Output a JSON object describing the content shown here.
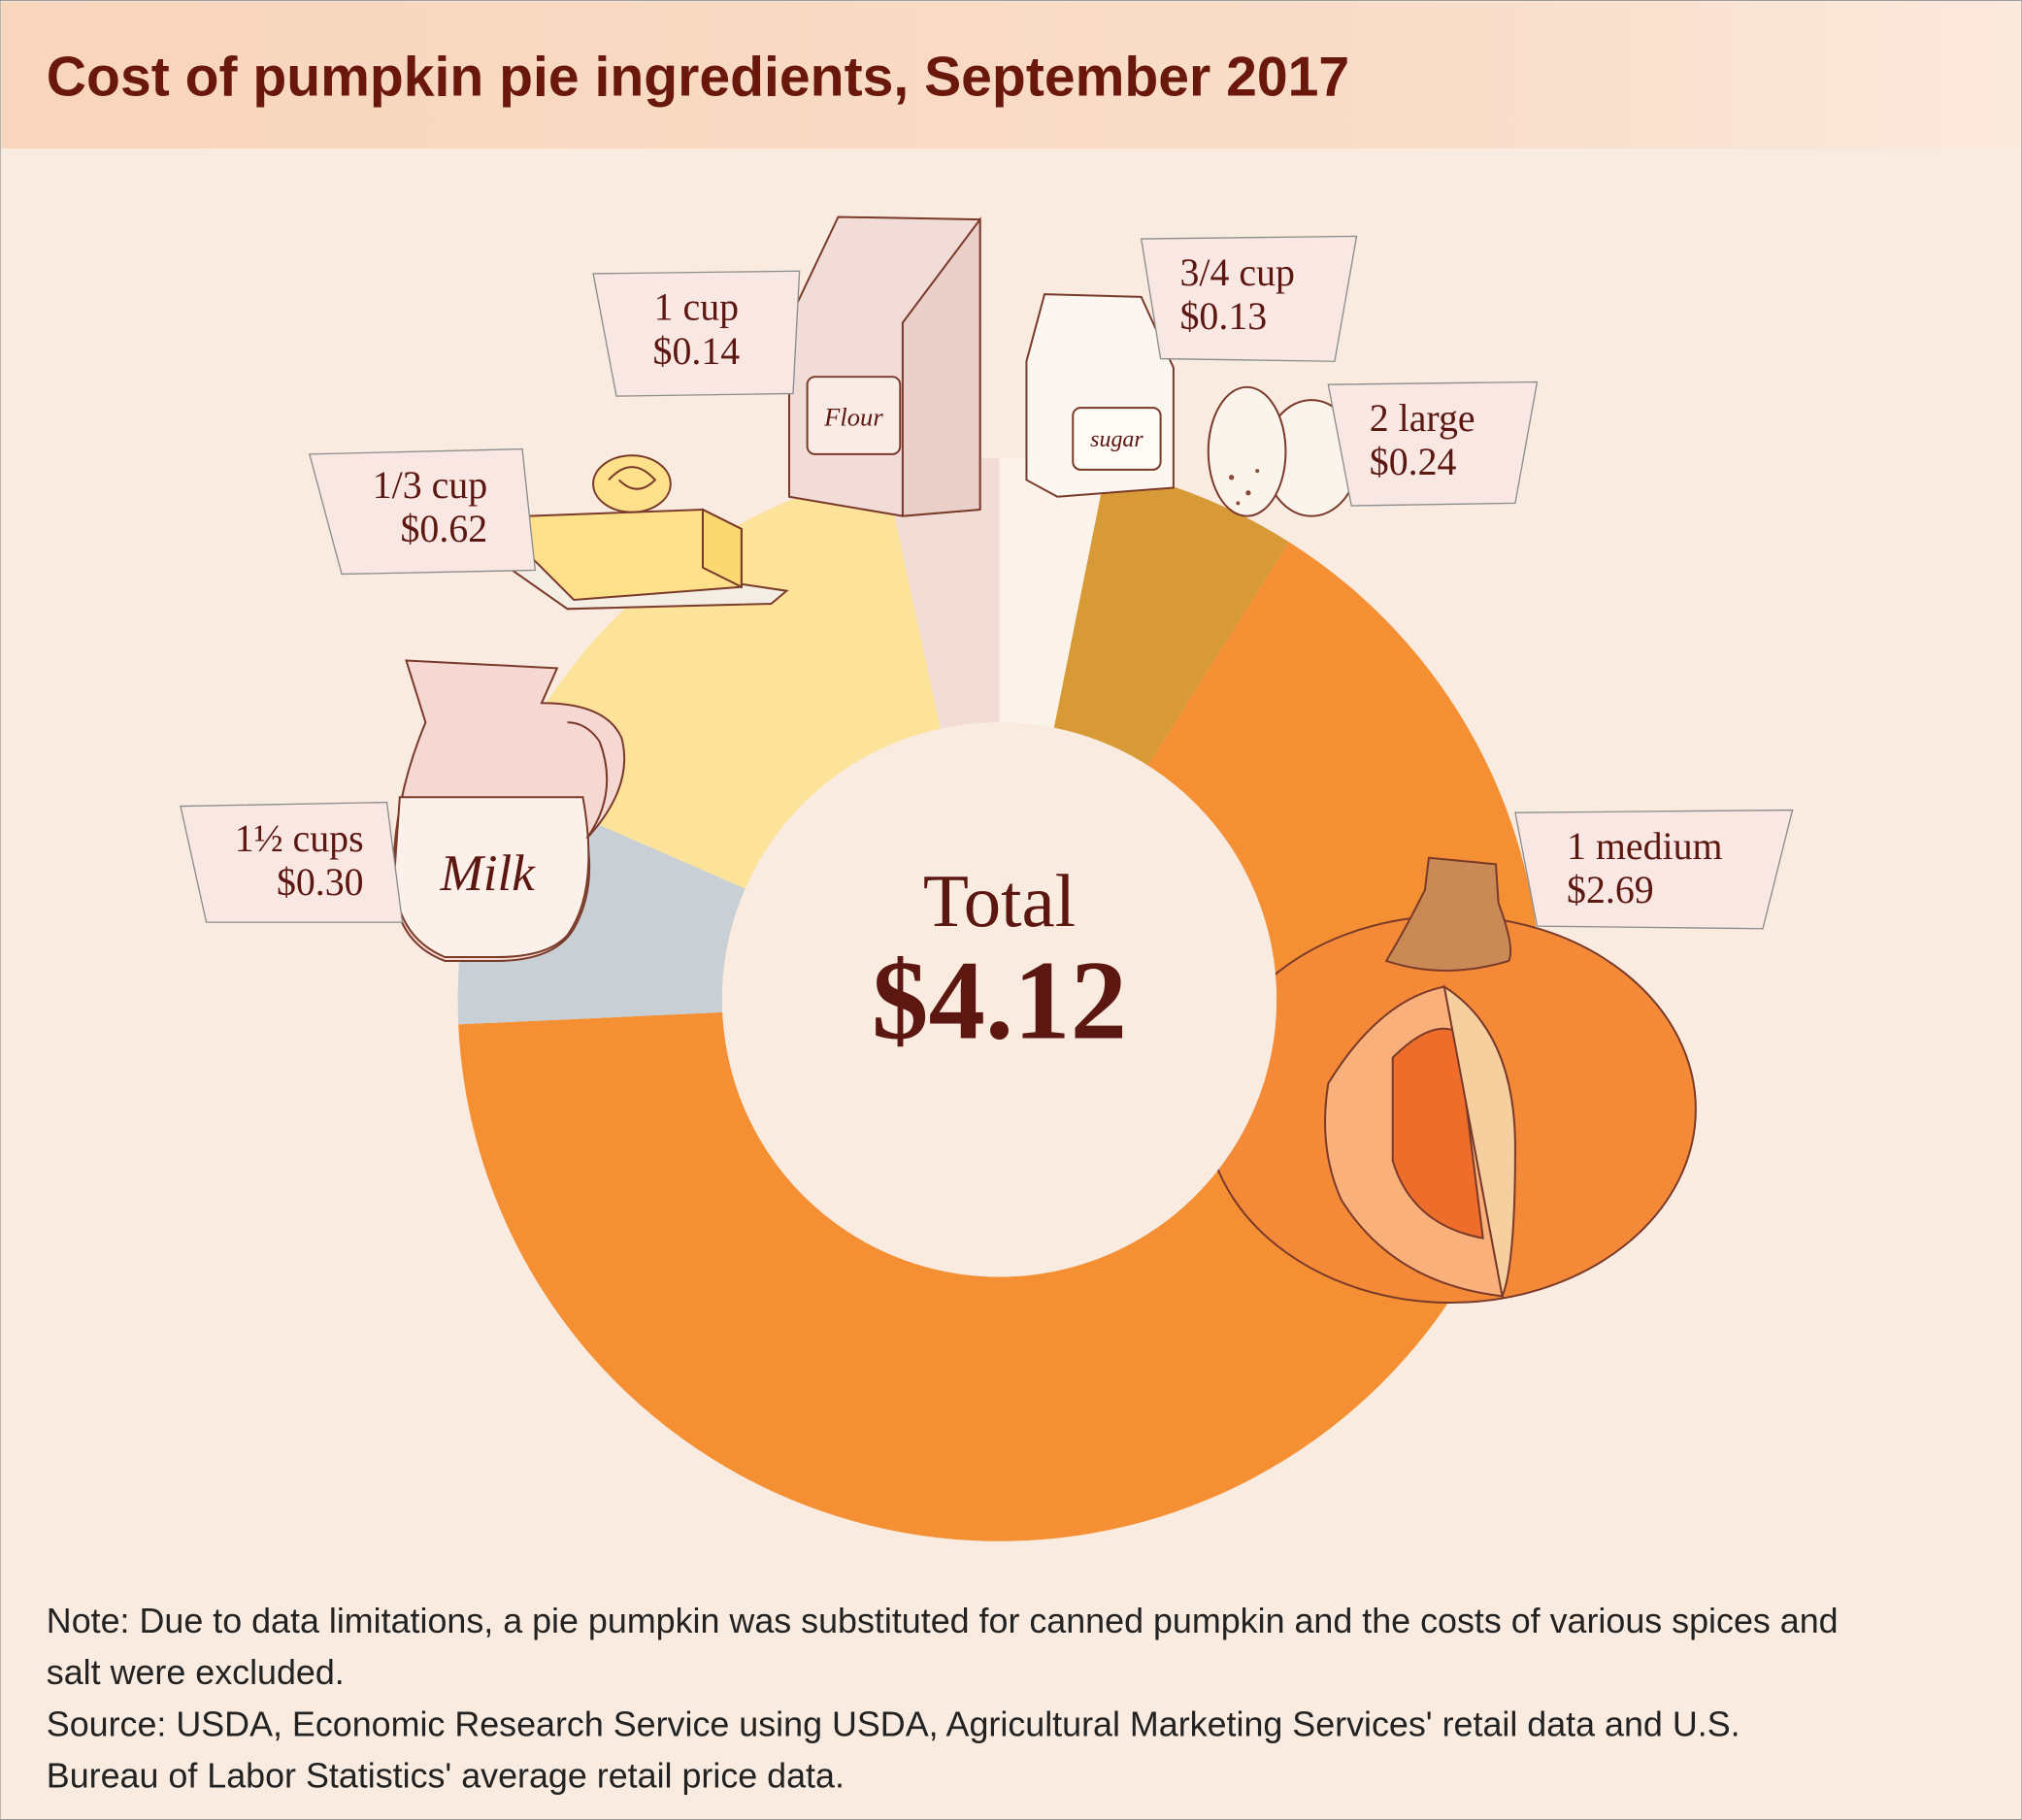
{
  "chart_data": {
    "type": "donut",
    "title": "Cost of pumpkin pie ingredients, September 2017",
    "categories": [
      "3/4 cup",
      "2 large",
      "1 medium",
      "1½ cups",
      "1/3 cup",
      "1 cup"
    ],
    "values": [
      0.13,
      0.24,
      2.69,
      0.3,
      0.62,
      0.14
    ],
    "value_labels": [
      "$0.13",
      "$0.24",
      "$2.69",
      "$0.30",
      "$0.62",
      "$0.14"
    ],
    "colors": [
      "#fbf3ea",
      "#d89a36",
      "#f48f33",
      "#c9d0d5",
      "#fde29a",
      "#f2ddd6"
    ],
    "center_label": "Total",
    "center_value": "$4.12",
    "illustration_labels": [
      "Flour",
      "sugar",
      "Milk"
    ],
    "note": [
      "Note: Due to data limitations, a pie pumpkin was substituted for canned pumpkin and the costs of various spices and",
      "salt were excluded."
    ],
    "source": [
      "Source: USDA, Economic Research Service using USDA, Agricultural Marketing Services' retail data and U.S.",
      "Bureau of Labor Statistics' average retail price data."
    ]
  }
}
